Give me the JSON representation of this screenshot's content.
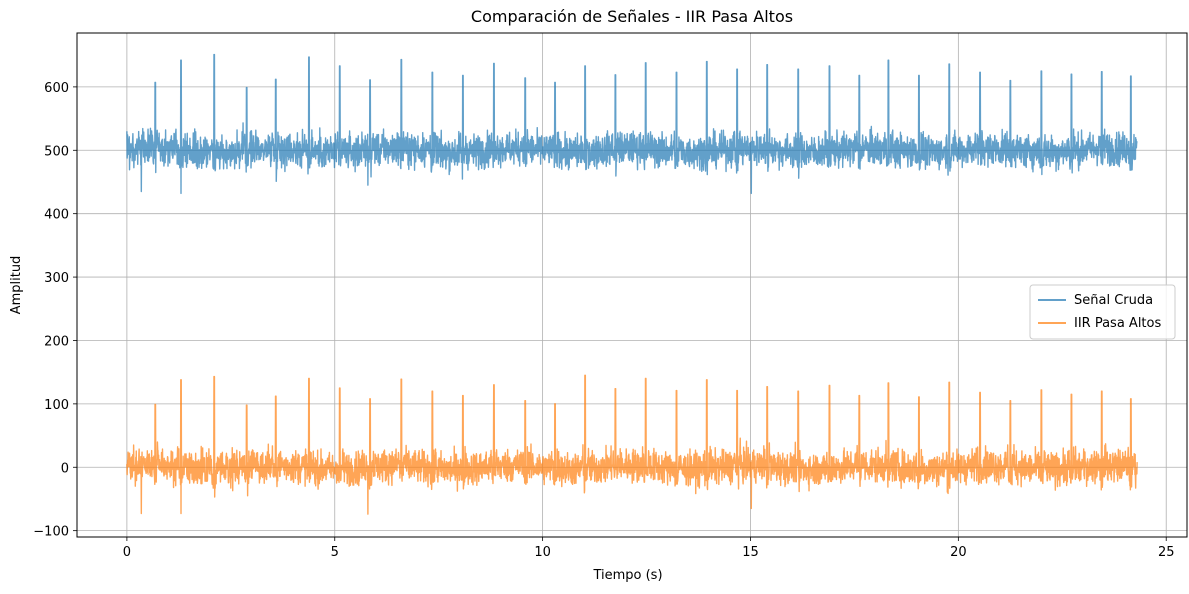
{
  "chart_data": {
    "type": "line",
    "title": "Comparación de Señales - IIR Pasa Altos",
    "xlabel": "Tiempo (s)",
    "ylabel": "Amplitud",
    "xlim": [
      -1.2,
      25.5
    ],
    "ylim": [
      -110,
      685
    ],
    "xticks": [
      0,
      5,
      10,
      15,
      20,
      25
    ],
    "yticks": [
      -100,
      0,
      100,
      200,
      300,
      400,
      500,
      600
    ],
    "xtick_labels": [
      "0",
      "5",
      "10",
      "15",
      "20",
      "25"
    ],
    "ytick_labels": [
      "−100",
      "0",
      "100",
      "200",
      "300",
      "400",
      "500",
      "600"
    ],
    "grid": true,
    "legend_position": "center-right",
    "peak_times": [
      0.68,
      1.3,
      2.1,
      2.88,
      3.58,
      4.38,
      5.12,
      5.85,
      6.6,
      7.35,
      8.08,
      8.83,
      9.58,
      10.3,
      11.02,
      11.75,
      12.48,
      13.22,
      13.95,
      14.68,
      15.4,
      16.15,
      16.9,
      17.62,
      18.32,
      19.05,
      19.78,
      20.52,
      21.25,
      22.0,
      22.72,
      23.45,
      24.15
    ],
    "series": [
      {
        "name": "Señal Cruda",
        "color": "#1f77b4",
        "alpha": 0.7,
        "baseline": 500,
        "x_range": [
          0,
          24.3
        ],
        "peak_values": [
          607,
          642,
          651,
          599,
          612,
          647,
          633,
          611,
          643,
          623,
          618,
          637,
          614,
          607,
          633,
          619,
          638,
          623,
          640,
          628,
          635,
          628,
          633,
          618,
          642,
          618,
          636,
          623,
          610,
          625,
          620,
          624,
          617
        ],
        "min_values": [
          435,
          432,
          445,
          432
        ]
      },
      {
        "name": "IIR Pasa Altos",
        "color": "#ff7f0e",
        "alpha": 0.7,
        "baseline": 0,
        "x_range": [
          0,
          24.3
        ],
        "peak_values": [
          99,
          138,
          143,
          98,
          112,
          140,
          125,
          108,
          139,
          120,
          113,
          130,
          105,
          100,
          145,
          124,
          140,
          121,
          138,
          121,
          127,
          120,
          129,
          113,
          133,
          111,
          134,
          118,
          105,
          122,
          115,
          120,
          108
        ],
        "min_values": [
          -73,
          -73,
          -74,
          -65
        ]
      }
    ]
  }
}
